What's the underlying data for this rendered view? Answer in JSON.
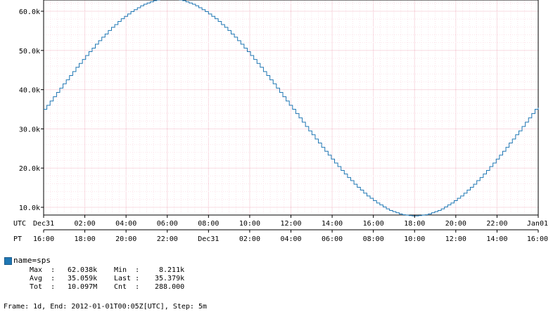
{
  "chart_data": {
    "type": "line",
    "series": [
      {
        "name": "name=sps",
        "color": "#1f77b4",
        "start_utc": "Dec31 00:00",
        "step": "5m",
        "y": [
          35.0,
          36.0,
          37.1,
          38.2,
          39.3,
          40.4,
          41.5,
          42.5,
          43.6,
          44.6,
          45.7,
          46.7,
          47.7,
          48.7,
          49.7,
          50.6,
          51.6,
          52.5,
          53.4,
          54.2,
          55.1,
          55.9,
          56.6,
          57.4,
          58.1,
          58.7,
          59.3,
          59.9,
          60.4,
          60.9,
          61.4,
          61.8,
          62.1,
          62.4,
          62.7,
          62.9,
          63.0,
          63.1,
          63.2,
          63.2,
          63.1,
          63.0,
          62.9,
          62.7,
          62.4,
          62.1,
          61.8,
          61.4,
          60.9,
          60.4,
          59.9,
          59.3,
          58.7,
          58.1,
          57.4,
          56.6,
          55.9,
          55.1,
          54.2,
          53.4,
          52.5,
          51.6,
          50.6,
          49.7,
          48.7,
          47.7,
          46.7,
          45.7,
          44.6,
          43.6,
          42.5,
          41.5,
          40.4,
          39.3,
          38.2,
          37.1,
          36.0,
          35.0,
          33.9,
          32.8,
          31.7,
          30.6,
          29.5,
          28.5,
          27.4,
          26.4,
          25.3,
          24.3,
          23.3,
          22.3,
          21.3,
          20.4,
          19.4,
          18.5,
          17.6,
          16.8,
          15.9,
          15.1,
          14.4,
          13.6,
          12.9,
          12.3,
          11.7,
          11.1,
          10.6,
          10.1,
          9.6,
          9.2,
          8.9,
          8.6,
          8.3,
          8.1,
          8.0,
          7.9,
          7.8,
          7.8,
          7.9,
          8.0,
          8.1,
          8.3,
          8.6,
          8.9,
          9.2,
          9.6,
          10.1,
          10.6,
          11.1,
          11.7,
          12.3,
          12.9,
          13.6,
          14.4,
          15.1,
          15.9,
          16.8,
          17.6,
          18.5,
          19.4,
          20.4,
          21.3,
          22.3,
          23.3,
          24.3,
          25.3,
          26.4,
          27.4,
          28.5,
          29.5,
          30.6,
          31.7,
          32.8,
          33.9,
          35.0,
          35.4
        ]
      }
    ],
    "ylim": [
      8.211,
      62.038
    ],
    "y_ticks": [
      "10.0k",
      "20.0k",
      "30.0k",
      "40.0k",
      "50.0k",
      "60.0k"
    ],
    "y_tick_values": [
      10,
      20,
      30,
      40,
      50,
      60
    ],
    "x_axis_utc": {
      "label": "UTC",
      "ticks": [
        "Dec31",
        "02:00",
        "04:00",
        "06:00",
        "08:00",
        "10:00",
        "12:00",
        "14:00",
        "16:00",
        "18:00",
        "20:00",
        "22:00",
        "Jan01"
      ]
    },
    "x_axis_pt": {
      "label": "PT",
      "ticks": [
        "16:00",
        "18:00",
        "20:00",
        "22:00",
        "Dec31",
        "02:00",
        "04:00",
        "06:00",
        "08:00",
        "10:00",
        "12:00",
        "14:00",
        "16:00"
      ]
    },
    "grid": true
  },
  "legend": {
    "name": "name=sps",
    "max_label": "Max  :",
    "max_value": "62.038k",
    "min_label": "Min  :",
    "min_value": "8.211k",
    "avg_label": "Avg  :",
    "avg_value": "35.059k",
    "last_label": "Last :",
    "last_value": "35.379k",
    "tot_label": "Tot  :",
    "tot_value": "10.097M",
    "cnt_label": "Cnt  :",
    "cnt_value": "288.000"
  },
  "footer": "Frame: 1d, End: 2012-01-01T00:05Z[UTC], Step: 5m"
}
